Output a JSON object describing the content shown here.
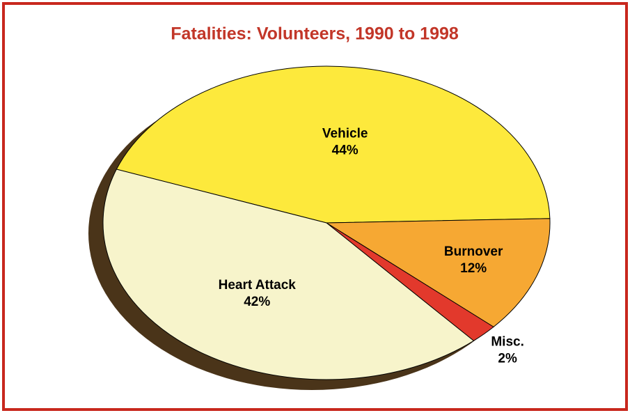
{
  "chart_data": {
    "type": "pie",
    "title": "Fatalities: Volunteers, 1990 to 1998",
    "categories": [
      "Vehicle",
      "Burnover",
      "Misc.",
      "Heart Attack"
    ],
    "values": [
      44,
      12,
      2,
      42
    ],
    "value_labels": [
      "44%",
      "12%",
      "2%",
      "42%"
    ],
    "colors": [
      "#fde93c",
      "#f6a833",
      "#e2392c",
      "#f7f4cb"
    ]
  }
}
